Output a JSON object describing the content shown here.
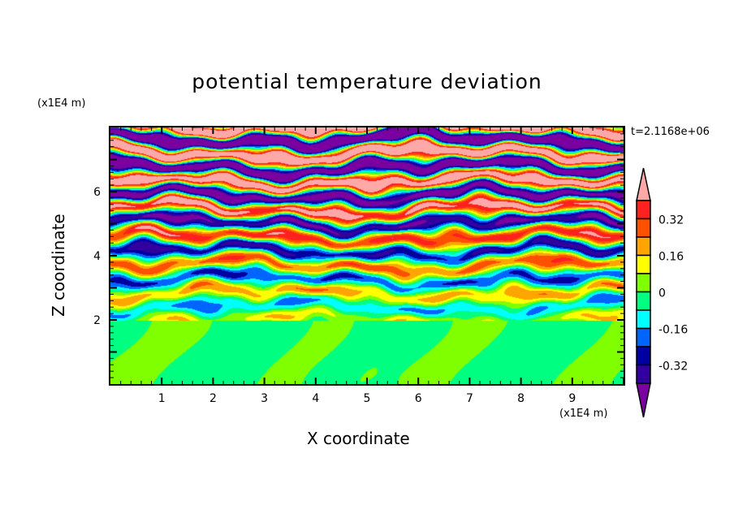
{
  "chart_data": {
    "type": "heatmap",
    "title": "potential temperature deviation",
    "xlabel": "X coordinate",
    "ylabel": "Z coordinate",
    "x_unit": "(x1E4 m)",
    "y_unit": "(x1E4 m)",
    "annotation": "t=2.1168e+06",
    "xlim": [
      0,
      10
    ],
    "ylim": [
      0,
      8
    ],
    "xticks": [
      "1",
      "2",
      "3",
      "4",
      "5",
      "6",
      "7",
      "8",
      "9"
    ],
    "yticks": [
      "2",
      "4",
      "6"
    ],
    "levels": [
      -0.4,
      -0.32,
      -0.24,
      -0.16,
      -0.08,
      0,
      0.08,
      0.16,
      0.24,
      0.32,
      0.4
    ],
    "colorbar_labels": [
      "0.32",
      "0.16",
      "0",
      "-0.16",
      "-0.32"
    ],
    "colorbar_label_values": [
      0.32,
      0.16,
      0,
      -0.16,
      -0.32
    ],
    "colors": [
      "#7a00a0",
      "#3300a0",
      "#0000a0",
      "#0064ff",
      "#00ffff",
      "#00ff80",
      "#80ff00",
      "#ffff00",
      "#ffa500",
      "#ff5000",
      "#ff2020",
      "#ffa8a8"
    ],
    "description_of_field": "layered stratified field above z=2 with growing amplitude; weak +/-0.04 arches below z=2"
  }
}
